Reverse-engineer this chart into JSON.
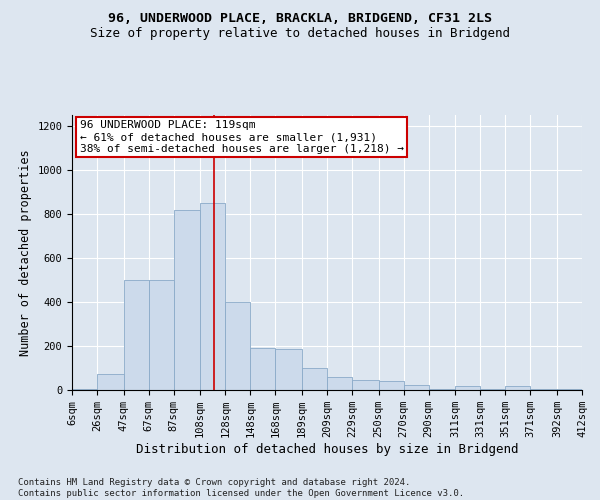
{
  "title_line1": "96, UNDERWOOD PLACE, BRACKLA, BRIDGEND, CF31 2LS",
  "title_line2": "Size of property relative to detached houses in Bridgend",
  "xlabel": "Distribution of detached houses by size in Bridgend",
  "ylabel": "Number of detached properties",
  "bar_color": "#ccdaeb",
  "bar_edgecolor": "#8aaac8",
  "bin_edges": [
    6,
    26,
    47,
    67,
    87,
    108,
    128,
    148,
    168,
    189,
    209,
    229,
    250,
    270,
    290,
    311,
    331,
    351,
    371,
    392,
    412
  ],
  "bar_heights": [
    5,
    75,
    500,
    500,
    820,
    850,
    400,
    190,
    185,
    100,
    58,
    45,
    40,
    25,
    5,
    18,
    5,
    18,
    5,
    3
  ],
  "property_size": 119,
  "annotation_text": "96 UNDERWOOD PLACE: 119sqm\n← 61% of detached houses are smaller (1,931)\n38% of semi-detached houses are larger (1,218) →",
  "vline_color": "#cc0000",
  "annotation_box_facecolor": "#ffffff",
  "annotation_box_edgecolor": "#cc0000",
  "ylim": [
    0,
    1250
  ],
  "yticks": [
    0,
    200,
    400,
    600,
    800,
    1000,
    1200
  ],
  "fig_facecolor": "#dde6f0",
  "ax_facecolor": "#dde6f0",
  "footnote": "Contains HM Land Registry data © Crown copyright and database right 2024.\nContains public sector information licensed under the Open Government Licence v3.0.",
  "title_fontsize": 9.5,
  "subtitle_fontsize": 9,
  "xlabel_fontsize": 9,
  "ylabel_fontsize": 8.5,
  "tick_fontsize": 7.5,
  "annotation_fontsize": 8,
  "footnote_fontsize": 6.5
}
